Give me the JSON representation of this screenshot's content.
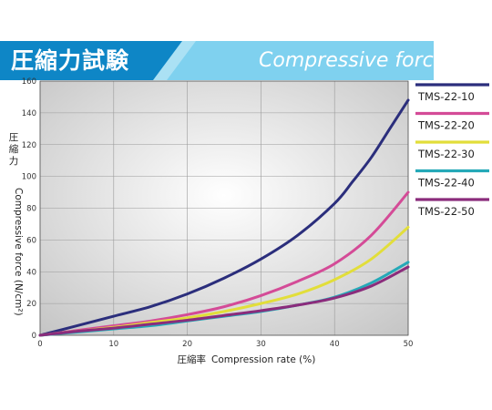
{
  "header": {
    "title_jp": "圧縮力試験",
    "title_en": "Compressive force"
  },
  "colors": {
    "header_dark": "#0e86c6",
    "header_light": "#7fd1ef",
    "plot_bg_center": "#ffffff",
    "plot_bg_edge": "#c4c4c4"
  },
  "chart_data": {
    "type": "line",
    "xlabel_jp": "圧縮率",
    "xlabel": "Compression rate (%)",
    "ylabel_jp": "圧縮力",
    "ylabel": "Compressive force (N/cm²)",
    "xlim": [
      0,
      50
    ],
    "ylim": [
      0,
      160
    ],
    "xticks": [
      0,
      10,
      20,
      30,
      40,
      50
    ],
    "yticks": [
      0,
      20,
      40,
      60,
      80,
      100,
      120,
      140,
      160
    ],
    "grid": true,
    "legend_position": "right",
    "series": [
      {
        "name": "TMS-22-10",
        "color": "#2b2e7c",
        "x": [
          0,
          5,
          10,
          15,
          20,
          25,
          30,
          35,
          40,
          42.5,
          45,
          47.5,
          50
        ],
        "y": [
          0,
          6,
          12,
          18,
          26,
          36,
          48,
          63,
          83,
          97,
          112,
          130,
          148
        ]
      },
      {
        "name": "TMS-22-20",
        "color": "#d44b97",
        "x": [
          0,
          5,
          10,
          15,
          20,
          25,
          30,
          35,
          40,
          45,
          50
        ],
        "y": [
          0,
          3,
          6,
          9,
          13,
          18,
          25,
          34,
          45,
          63,
          90
        ]
      },
      {
        "name": "TMS-22-30",
        "color": "#e2de3a",
        "x": [
          0,
          5,
          10,
          15,
          20,
          25,
          30,
          35,
          40,
          45,
          50
        ],
        "y": [
          0,
          2.5,
          5,
          8,
          11,
          15,
          20,
          26,
          35,
          48,
          68
        ]
      },
      {
        "name": "TMS-22-40",
        "color": "#25a9b8",
        "x": [
          0,
          5,
          10,
          15,
          20,
          25,
          30,
          35,
          40,
          45,
          50
        ],
        "y": [
          0,
          2,
          4,
          6,
          9,
          12,
          15,
          19,
          24,
          33,
          46
        ]
      },
      {
        "name": "TMS-22-50",
        "color": "#8b2c7c",
        "x": [
          0,
          5,
          10,
          15,
          20,
          25,
          30,
          35,
          40,
          45,
          50
        ],
        "y": [
          0,
          2.5,
          4.5,
          7,
          9.5,
          12.5,
          15.5,
          19,
          23.5,
          31,
          43
        ]
      }
    ]
  }
}
